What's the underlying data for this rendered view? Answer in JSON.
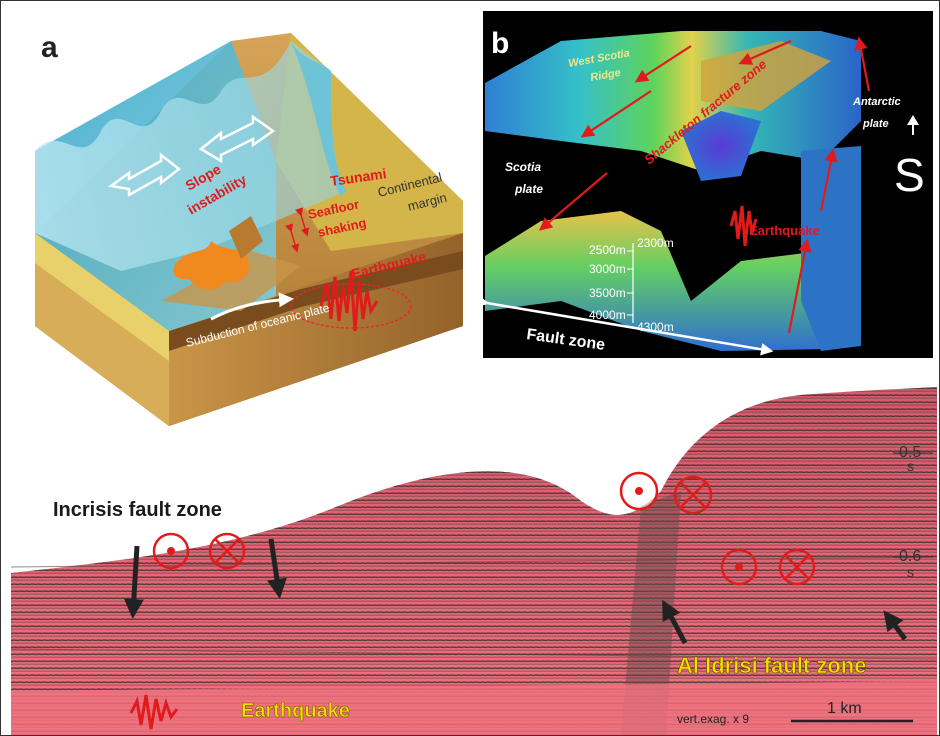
{
  "panel_a": {
    "letter": "a",
    "labels": {
      "tsunami": "Tsunami",
      "slope_1": "Slope",
      "slope_2": "instability",
      "shaking_1": "Seafloor",
      "shaking_2": "shaking",
      "margin_1": "Continental",
      "margin_2": "margin",
      "earthquake": "Earthquake",
      "subduction": "Subduction of oceanic plate"
    }
  },
  "panel_b": {
    "letter": "b",
    "labels": {
      "ridge_1": "West Scotia",
      "ridge_2": "Ridge",
      "fracture": "Shackleton fracture zone",
      "antarctic_1": "Antarctic",
      "antarctic_2": "plate",
      "scotia_1": "Scotia",
      "scotia_2": "plate",
      "earthquake": "Earthquake",
      "north_symbol": "S",
      "fault_zone": "Fault zone"
    },
    "depth_scale": [
      "2500m",
      "3000m",
      "3500m",
      "4000m"
    ],
    "depth_markers": [
      "2300m",
      "4300m"
    ]
  },
  "panel_c": {
    "incrisis": "Incrisis fault zone",
    "al_idrisi": "Al Idrisi fault zone",
    "earthquake": "Earthquake",
    "twt_1": "0.5",
    "twt_2": "0.6",
    "twt_unit": "s",
    "vert_exag": "vert.exag. x 9",
    "scale_bar": "1 km"
  },
  "colors": {
    "accent_red": "#e01b1b",
    "annotation_yellow": "#f2e000",
    "seismic_pink": "#f06a7a",
    "bathymetry_background": "#000000"
  }
}
